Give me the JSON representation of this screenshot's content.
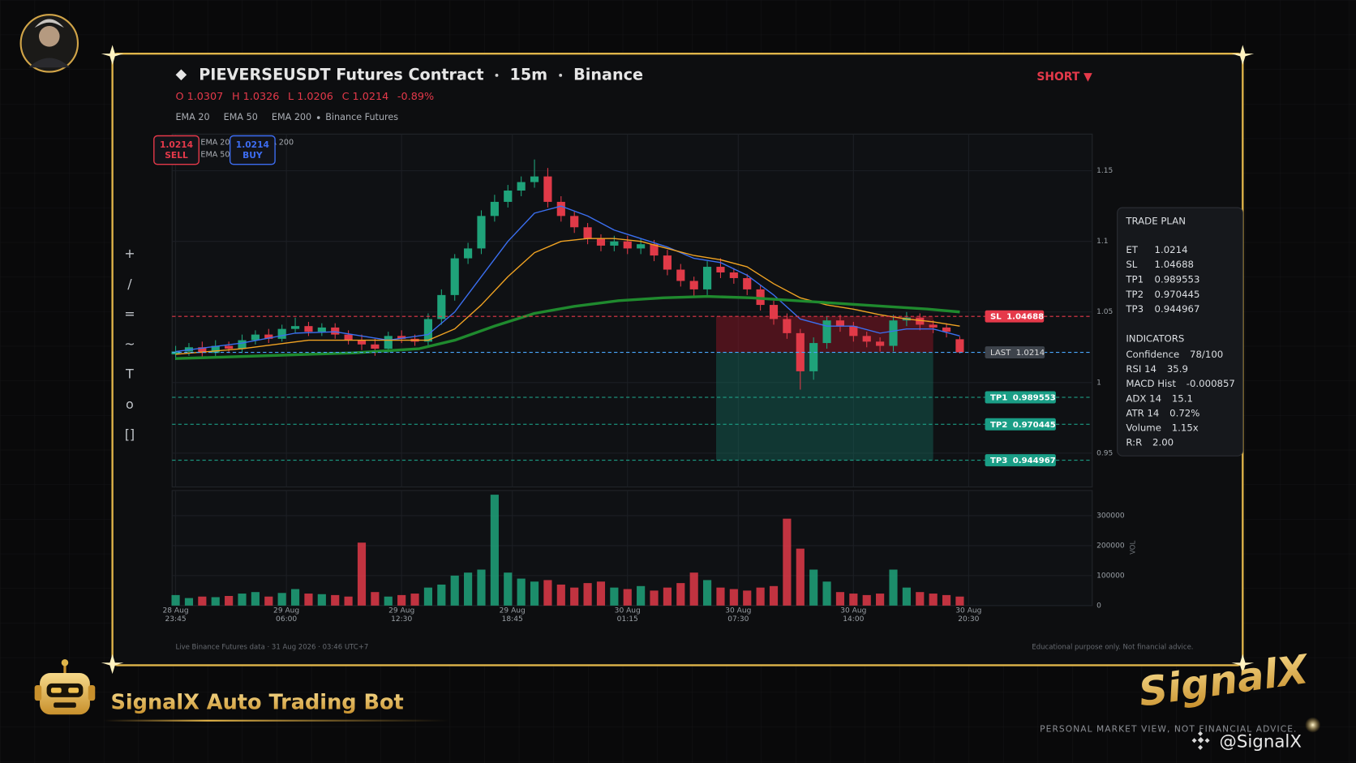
{
  "header": {
    "title_parts": [
      "PIEVERSEUSDT Futures Contract",
      "15m",
      "Binance"
    ],
    "ohlc": [
      "O 1.0307",
      "H 1.0326",
      "L 1.0206",
      "C 1.0214",
      "-0.89%"
    ],
    "legend_source": "Binance Futures",
    "signal": "SHORT ▼"
  },
  "toolbar": [
    "+",
    "/",
    "=",
    "~",
    "T",
    "o",
    "[]"
  ],
  "order_buttons": [
    {
      "price": "1.0214",
      "side": "SELL",
      "color": "#e5394a"
    },
    {
      "price": "1.0214",
      "side": "BUY",
      "color": "#3d6df2"
    }
  ],
  "chart_data": {
    "type": "candlestick",
    "x": [
      0,
      3,
      6,
      9,
      12,
      15,
      18,
      21,
      24,
      27,
      30,
      33,
      36,
      39,
      42,
      45,
      48,
      51,
      54,
      57,
      60,
      63,
      66,
      69,
      72,
      75,
      78,
      81,
      84,
      87,
      90,
      93,
      96,
      99,
      102,
      105,
      108,
      111,
      114,
      117,
      120,
      123,
      126,
      129,
      132,
      135,
      138,
      141,
      144,
      147,
      150,
      153,
      156,
      159,
      162,
      165,
      168,
      171,
      174,
      177
    ],
    "open": [
      1.02,
      1.022,
      1.025,
      1.021,
      1.026,
      1.024,
      1.03,
      1.034,
      1.031,
      1.038,
      1.04,
      1.036,
      1.039,
      1.034,
      1.03,
      1.027,
      1.024,
      1.033,
      1.031,
      1.029,
      1.045,
      1.062,
      1.088,
      1.095,
      1.118,
      1.128,
      1.136,
      1.142,
      1.146,
      1.128,
      1.118,
      1.11,
      1.102,
      1.097,
      1.1,
      1.095,
      1.098,
      1.09,
      1.08,
      1.072,
      1.066,
      1.082,
      1.078,
      1.074,
      1.066,
      1.055,
      1.045,
      1.035,
      1.008,
      1.028,
      1.044,
      1.04,
      1.033,
      1.029,
      1.026,
      1.044,
      1.046,
      1.041,
      1.039,
      1.0307
    ],
    "high": [
      1.026,
      1.028,
      1.029,
      1.03,
      1.029,
      1.034,
      1.037,
      1.038,
      1.041,
      1.046,
      1.043,
      1.042,
      1.042,
      1.037,
      1.034,
      1.031,
      1.036,
      1.037,
      1.034,
      1.049,
      1.066,
      1.091,
      1.099,
      1.122,
      1.133,
      1.14,
      1.146,
      1.158,
      1.152,
      1.132,
      1.121,
      1.113,
      1.105,
      1.104,
      1.104,
      1.102,
      1.101,
      1.094,
      1.084,
      1.075,
      1.086,
      1.088,
      1.081,
      1.077,
      1.069,
      1.058,
      1.049,
      1.038,
      1.032,
      1.047,
      1.048,
      1.043,
      1.036,
      1.032,
      1.048,
      1.05,
      1.049,
      1.044,
      1.042,
      1.0326
    ],
    "low": [
      1.016,
      1.019,
      1.018,
      1.018,
      1.021,
      1.021,
      1.027,
      1.028,
      1.029,
      1.035,
      1.033,
      1.033,
      1.031,
      1.027,
      1.023,
      1.019,
      1.021,
      1.028,
      1.026,
      1.026,
      1.041,
      1.058,
      1.084,
      1.091,
      1.114,
      1.124,
      1.132,
      1.138,
      1.124,
      1.114,
      1.106,
      1.098,
      1.093,
      1.093,
      1.091,
      1.091,
      1.086,
      1.076,
      1.068,
      1.061,
      1.062,
      1.074,
      1.07,
      1.062,
      1.051,
      1.041,
      1.031,
      0.995,
      1.002,
      1.024,
      1.036,
      1.029,
      1.025,
      1.022,
      1.022,
      1.04,
      1.037,
      1.035,
      1.032,
      1.0206
    ],
    "close": [
      1.022,
      1.025,
      1.021,
      1.026,
      1.024,
      1.03,
      1.034,
      1.031,
      1.038,
      1.04,
      1.036,
      1.039,
      1.034,
      1.03,
      1.027,
      1.024,
      1.033,
      1.031,
      1.029,
      1.045,
      1.062,
      1.088,
      1.095,
      1.118,
      1.128,
      1.136,
      1.142,
      1.146,
      1.128,
      1.118,
      1.11,
      1.102,
      1.097,
      1.1,
      1.095,
      1.098,
      1.09,
      1.08,
      1.072,
      1.066,
      1.082,
      1.078,
      1.074,
      1.066,
      1.055,
      1.045,
      1.035,
      1.008,
      1.028,
      1.044,
      1.04,
      1.033,
      1.029,
      1.026,
      1.044,
      1.046,
      1.041,
      1.039,
      1.036,
      1.0214
    ],
    "volume": [
      35000,
      25000,
      30000,
      28000,
      32000,
      40000,
      45000,
      30000,
      42000,
      55000,
      40000,
      38000,
      35000,
      30000,
      210000,
      45000,
      30000,
      35000,
      40000,
      60000,
      70000,
      100000,
      110000,
      120000,
      370000,
      110000,
      90000,
      80000,
      85000,
      70000,
      60000,
      75000,
      80000,
      60000,
      55000,
      65000,
      50000,
      60000,
      75000,
      110000,
      85000,
      60000,
      55000,
      50000,
      60000,
      65000,
      290000,
      190000,
      120000,
      80000,
      45000,
      40000,
      35000,
      40000,
      120000,
      60000,
      45000,
      40000,
      35000,
      30000
    ],
    "up_color": "#1fa37a",
    "down_color": "#e03a48",
    "xlim": [
      -0.8,
      206.9
    ],
    "xticks": [
      {
        "value": 0,
        "label": "28 Aug 23:45"
      },
      {
        "value": 25,
        "label": "29 Aug 06:00"
      },
      {
        "value": 51,
        "label": "29 Aug 12:30"
      },
      {
        "value": 76,
        "label": "29 Aug 18:45"
      },
      {
        "value": 102,
        "label": "30 Aug 01:15"
      },
      {
        "value": 127,
        "label": "30 Aug 07:30"
      },
      {
        "value": 153,
        "label": "30 Aug 14:00"
      },
      {
        "value": 179,
        "label": "30 Aug 20:30"
      }
    ],
    "ylim": [
      0.926,
      1.176
    ],
    "yticks": [
      0.95,
      1,
      1.05,
      1.1,
      1.15
    ],
    "grid": true,
    "volume_label": "VOL",
    "volume_ylim": [
      0,
      384000
    ],
    "volume_yticks": [
      0,
      100000,
      200000,
      300000
    ],
    "series": [
      {
        "name": "EMA 20",
        "color": "#3b6ff0",
        "line_width": 1.3,
        "x": [
          0,
          15,
          27,
          36,
          48,
          57,
          63,
          69,
          75,
          81,
          87,
          93,
          99,
          105,
          111,
          117,
          123,
          129,
          135,
          141,
          147,
          153,
          159,
          165,
          171,
          177
        ],
        "values": [
          1.022,
          1.028,
          1.035,
          1.036,
          1.03,
          1.034,
          1.05,
          1.075,
          1.1,
          1.12,
          1.125,
          1.118,
          1.108,
          1.102,
          1.096,
          1.088,
          1.085,
          1.076,
          1.062,
          1.045,
          1.04,
          1.04,
          1.035,
          1.038,
          1.038,
          1.033
        ]
      },
      {
        "name": "EMA 50",
        "color": "#f0a323",
        "line_width": 1.3,
        "x": [
          0,
          15,
          30,
          45,
          57,
          63,
          69,
          75,
          81,
          87,
          93,
          99,
          105,
          111,
          117,
          123,
          129,
          135,
          141,
          147,
          153,
          159,
          165,
          171,
          177
        ],
        "values": [
          1.02,
          1.024,
          1.03,
          1.03,
          1.03,
          1.038,
          1.055,
          1.075,
          1.092,
          1.1,
          1.102,
          1.102,
          1.1,
          1.095,
          1.09,
          1.087,
          1.082,
          1.07,
          1.06,
          1.055,
          1.052,
          1.048,
          1.045,
          1.043,
          1.04
        ]
      },
      {
        "name": "EMA 200",
        "color": "#1f8a2e",
        "line_width": 3.2,
        "x": [
          0,
          20,
          40,
          55,
          63,
          72,
          81,
          90,
          100,
          110,
          120,
          130,
          140,
          150,
          160,
          170,
          177
        ],
        "values": [
          1.017,
          1.019,
          1.021,
          1.024,
          1.03,
          1.04,
          1.049,
          1.054,
          1.058,
          1.06,
          1.061,
          1.06,
          1.058,
          1.056,
          1.054,
          1.052,
          1.05
        ]
      }
    ],
    "entry": {
      "name": "LAST",
      "value": 1.0214,
      "color": "#4aa8ff",
      "box_color": "#3d434b",
      "text_color": "#dddddd"
    },
    "levels": [
      {
        "name": "SL",
        "value": 1.04688,
        "color": "#e5394a",
        "box_color": "#e5394a",
        "text_color": "#ffffff",
        "zone_color": "rgba(130,22,34,0.55)"
      },
      {
        "name": "TP1",
        "value": 0.989553,
        "color": "#1fae92",
        "box_color": "#1a9e86",
        "text_color": "#ffffff"
      },
      {
        "name": "TP2",
        "value": 0.970445,
        "color": "#1fae92",
        "box_color": "#1a9e86",
        "text_color": "#ffffff"
      },
      {
        "name": "TP3",
        "value": 0.944967,
        "color": "#1fae92",
        "box_color": "#1a9e86",
        "text_color": "#ffffff",
        "zone_color": "rgba(22,110,96,0.42)"
      }
    ],
    "zone_xlim": [
      122,
      171
    ]
  },
  "trade_plan": {
    "title": "TRADE PLAN",
    "rows": [
      {
        "label": "ET",
        "value": "1.0214"
      },
      {
        "label": "SL",
        "value": "1.04688"
      },
      {
        "label": "TP1",
        "value": "0.989553"
      },
      {
        "label": "TP2",
        "value": "0.970445"
      },
      {
        "label": "TP3",
        "value": "0.944967"
      }
    ]
  },
  "indicators": {
    "title": "INDICATORS",
    "rows": [
      {
        "label": "Confidence",
        "value": "78/100"
      },
      {
        "label": "RSI 14",
        "value": "35.9"
      },
      {
        "label": "MACD Hist",
        "value": "-0.000857"
      },
      {
        "label": "ADX 14",
        "value": "15.1"
      },
      {
        "label": "ATR 14",
        "value": "0.72%"
      },
      {
        "label": "Volume",
        "value": "1.15x"
      },
      {
        "label": "R:R",
        "value": "2.00"
      }
    ]
  },
  "footer": {
    "left": "Live Binance Futures data  ·  31 Aug 2026 · 03:46 UTC+7",
    "right": "Educational purpose only. Not financial advice."
  },
  "brand": {
    "bot_name": "SignalX Auto Trading Bot",
    "logo": "SignalX",
    "disclaimer": "PERSONAL MARKET VIEW, NOT FINANCIAL ADVICE.",
    "handle": "@SignalX"
  }
}
